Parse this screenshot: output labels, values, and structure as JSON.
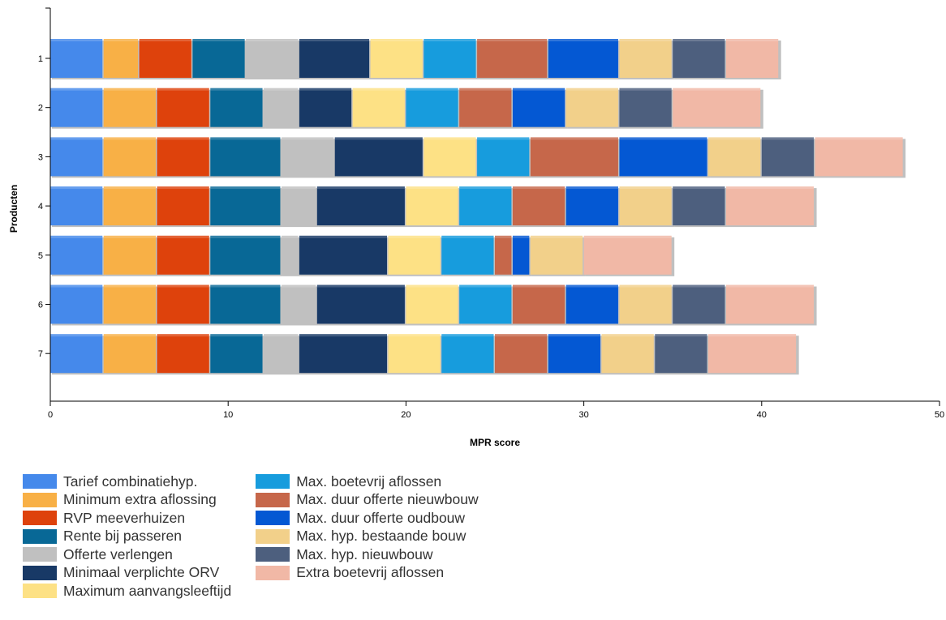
{
  "chart_data": {
    "type": "bar",
    "orientation": "horizontal",
    "stacked": true,
    "title": "",
    "xlabel": "MPR score",
    "ylabel": "Producten",
    "xlim": [
      0,
      50
    ],
    "x_ticks": [
      "0",
      "10",
      "20",
      "30",
      "40",
      "50"
    ],
    "categories": [
      "1",
      "2",
      "3",
      "4",
      "5",
      "6",
      "7"
    ],
    "grid": false,
    "legend_position": "bottom-left",
    "series": [
      {
        "name": "Tarief combinatiehyp.",
        "color": "#4589eb",
        "values": [
          3,
          3,
          3,
          3,
          3,
          3,
          3
        ]
      },
      {
        "name": "Minimum extra aflossing",
        "color": "#f8b046",
        "values": [
          2,
          3,
          3,
          3,
          3,
          3,
          3
        ]
      },
      {
        "name": "RVP meeverhuizen",
        "color": "#de420c",
        "values": [
          3,
          3,
          3,
          3,
          3,
          3,
          3
        ]
      },
      {
        "name": "Rente bij passeren",
        "color": "#086896",
        "values": [
          3,
          3,
          4,
          4,
          4,
          4,
          3
        ]
      },
      {
        "name": "Offerte verlengen",
        "color": "#c0c0c0",
        "values": [
          3,
          2,
          3,
          2,
          1,
          2,
          2
        ]
      },
      {
        "name": "Minimaal verplichte ORV",
        "color": "#183966",
        "values": [
          4,
          3,
          5,
          5,
          5,
          5,
          5
        ]
      },
      {
        "name": "Maximum aanvangsleeftijd",
        "color": "#fde185",
        "values": [
          3,
          3,
          3,
          3,
          3,
          3,
          3
        ]
      },
      {
        "name": "Max. boetevrij aflossen",
        "color": "#179cdd",
        "values": [
          3,
          3,
          3,
          3,
          3,
          3,
          3
        ]
      },
      {
        "name": "Max. duur offerte nieuwbouw",
        "color": "#c6674a",
        "values": [
          4,
          3,
          5,
          3,
          1,
          3,
          3
        ]
      },
      {
        "name": "Max. duur offerte oudbouw",
        "color": "#0458d3",
        "values": [
          4,
          3,
          5,
          3,
          1,
          3,
          3
        ]
      },
      {
        "name": "Max. hyp. bestaande bouw",
        "color": "#f2d08a",
        "values": [
          3,
          3,
          3,
          3,
          3,
          3,
          3
        ]
      },
      {
        "name": "Max. hyp. nieuwbouw",
        "color": "#4d5f7e",
        "values": [
          3,
          3,
          3,
          3,
          0,
          3,
          3
        ]
      },
      {
        "name": "Extra boetevrij aflossen",
        "color": "#f1b8a6",
        "values": [
          3,
          5,
          5,
          5,
          5,
          5,
          5
        ]
      }
    ]
  }
}
